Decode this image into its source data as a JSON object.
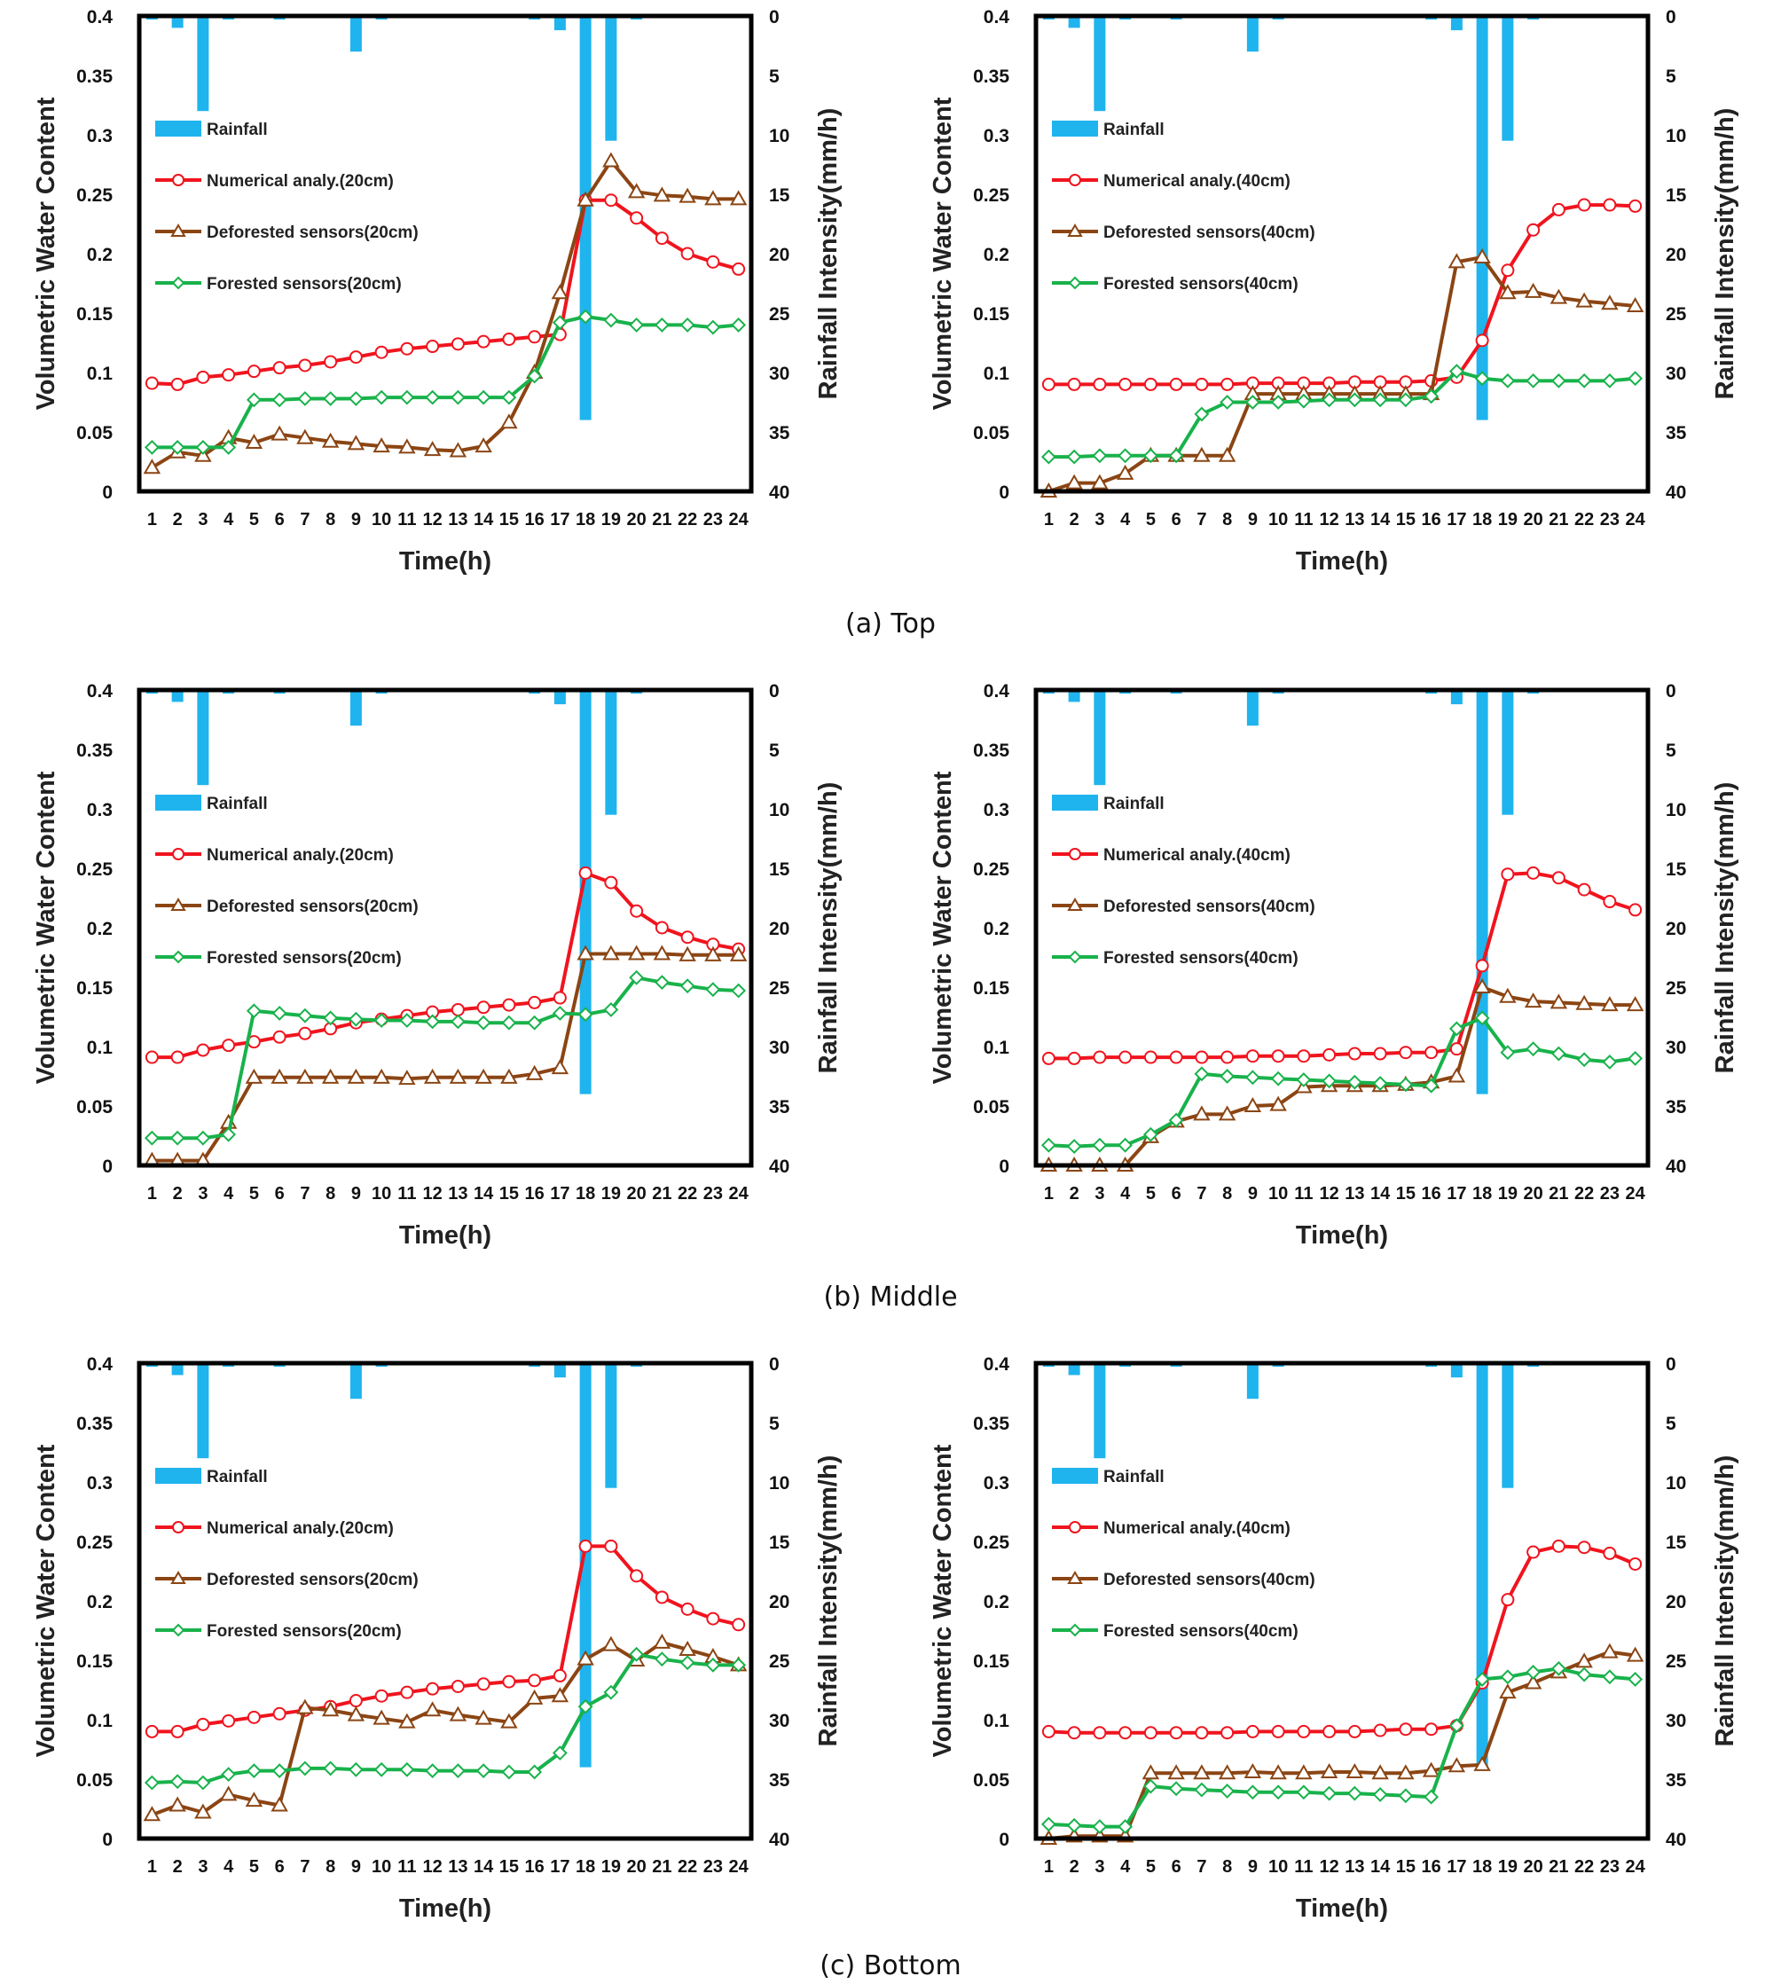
{
  "colors": {
    "rainfall": "#1FB4EE",
    "numerical": "#F0141E",
    "deforested": "#8B4513",
    "forested": "#18B24B",
    "frame": "#000000"
  },
  "captions": [
    "(a)  Top",
    "(b)  Middle",
    "(c)  Bottom"
  ],
  "chart_data": [
    {
      "id": "top-20",
      "row": 0,
      "col": 0,
      "type": "line",
      "xlabel": "Time(h)",
      "ylabel": "Volumetric Water Content",
      "y2label": "Rainfall Intensity(mm/h)",
      "x": [
        1,
        2,
        3,
        4,
        5,
        6,
        7,
        8,
        9,
        10,
        11,
        12,
        13,
        14,
        15,
        16,
        17,
        18,
        19,
        20,
        21,
        22,
        23,
        24
      ],
      "ylim": [
        0,
        0.4
      ],
      "yticks": [
        "0",
        "0.05",
        "0.1",
        "0.15",
        "0.2",
        "0.25",
        "0.3",
        "0.35",
        "0.4"
      ],
      "y2lim": [
        0,
        40
      ],
      "y2ticks": [
        "0",
        "5",
        "10",
        "15",
        "20",
        "25",
        "30",
        "35",
        "40"
      ],
      "y2_inverted": true,
      "legend_position": "left",
      "rainfall": {
        "name": "Rainfall",
        "values": [
          0.3,
          1,
          8,
          0.3,
          0,
          0.3,
          0,
          0,
          3,
          0.3,
          0,
          0,
          0,
          0,
          0,
          0.3,
          1.2,
          34,
          10.5,
          0.3,
          0,
          0,
          0,
          0
        ]
      },
      "series": [
        {
          "name": "Numerical analy.(20cm)",
          "key": "numerical",
          "values": [
            0.091,
            0.09,
            0.096,
            0.098,
            0.101,
            0.104,
            0.106,
            0.109,
            0.113,
            0.117,
            0.12,
            0.122,
            0.124,
            0.126,
            0.128,
            0.13,
            0.132,
            0.245,
            0.245,
            0.23,
            0.213,
            0.2,
            0.193,
            0.187
          ]
        },
        {
          "name": "Deforested sensors(20cm)",
          "key": "deforested",
          "values": [
            0.02,
            0.033,
            0.03,
            0.045,
            0.041,
            0.048,
            0.045,
            0.042,
            0.04,
            0.038,
            0.037,
            0.035,
            0.034,
            0.038,
            0.058,
            0.1,
            0.167,
            0.245,
            0.278,
            0.252,
            0.249,
            0.248,
            0.246,
            0.246
          ]
        },
        {
          "name": "Forested sensors(20cm)",
          "key": "forested",
          "values": [
            0.037,
            0.037,
            0.037,
            0.037,
            0.077,
            0.077,
            0.078,
            0.078,
            0.078,
            0.079,
            0.079,
            0.079,
            0.079,
            0.079,
            0.079,
            0.097,
            0.142,
            0.147,
            0.144,
            0.14,
            0.14,
            0.14,
            0.138,
            0.14
          ]
        }
      ]
    },
    {
      "id": "top-40",
      "row": 0,
      "col": 1,
      "type": "line",
      "xlabel": "Time(h)",
      "ylabel": "Volumetric Water Content",
      "y2label": "Rainfall Intensity(mm/h)",
      "x": [
        1,
        2,
        3,
        4,
        5,
        6,
        7,
        8,
        9,
        10,
        11,
        12,
        13,
        14,
        15,
        16,
        17,
        18,
        19,
        20,
        21,
        22,
        23,
        24
      ],
      "ylim": [
        0,
        0.4
      ],
      "yticks": [
        "0",
        "0.05",
        "0.1",
        "0.15",
        "0.2",
        "0.25",
        "0.3",
        "0.35",
        "0.4"
      ],
      "y2lim": [
        0,
        40
      ],
      "y2ticks": [
        "0",
        "5",
        "10",
        "15",
        "20",
        "25",
        "30",
        "35",
        "40"
      ],
      "y2_inverted": true,
      "legend_position": "left",
      "rainfall": {
        "name": "Rainfall",
        "values": [
          0.3,
          1,
          8,
          0.3,
          0,
          0.3,
          0,
          0,
          3,
          0.3,
          0,
          0,
          0,
          0,
          0,
          0.3,
          1.2,
          34,
          10.5,
          0.3,
          0,
          0,
          0,
          0
        ]
      },
      "series": [
        {
          "name": "Numerical analy.(40cm)",
          "key": "numerical",
          "values": [
            0.09,
            0.09,
            0.09,
            0.09,
            0.09,
            0.09,
            0.09,
            0.09,
            0.091,
            0.091,
            0.091,
            0.091,
            0.092,
            0.092,
            0.092,
            0.093,
            0.096,
            0.127,
            0.186,
            0.22,
            0.237,
            0.241,
            0.241,
            0.24
          ]
        },
        {
          "name": "Deforested sensors(40cm)",
          "key": "deforested",
          "values": [
            0.0,
            0.007,
            0.007,
            0.015,
            0.03,
            0.03,
            0.03,
            0.03,
            0.082,
            0.082,
            0.082,
            0.082,
            0.082,
            0.082,
            0.082,
            0.082,
            0.193,
            0.197,
            0.167,
            0.168,
            0.163,
            0.16,
            0.158,
            0.156
          ]
        },
        {
          "name": "Forested sensors(40cm)",
          "key": "forested",
          "values": [
            0.029,
            0.029,
            0.03,
            0.03,
            0.03,
            0.03,
            0.065,
            0.075,
            0.075,
            0.075,
            0.076,
            0.077,
            0.077,
            0.077,
            0.077,
            0.08,
            0.101,
            0.095,
            0.093,
            0.093,
            0.093,
            0.093,
            0.093,
            0.095
          ]
        }
      ]
    },
    {
      "id": "middle-20",
      "row": 1,
      "col": 0,
      "type": "line",
      "xlabel": "Time(h)",
      "ylabel": "Volumetric Water Content",
      "y2label": "Rainfall Intensity(mm/h)",
      "x": [
        1,
        2,
        3,
        4,
        5,
        6,
        7,
        8,
        9,
        10,
        11,
        12,
        13,
        14,
        15,
        16,
        17,
        18,
        19,
        20,
        21,
        22,
        23,
        24
      ],
      "ylim": [
        0,
        0.4
      ],
      "yticks": [
        "0",
        "0.05",
        "0.1",
        "0.15",
        "0.2",
        "0.25",
        "0.3",
        "0.35",
        "0.4"
      ],
      "y2lim": [
        0,
        40
      ],
      "y2ticks": [
        "0",
        "5",
        "10",
        "15",
        "20",
        "25",
        "30",
        "35",
        "40"
      ],
      "y2_inverted": true,
      "legend_position": "left",
      "rainfall": {
        "name": "Rainfall",
        "values": [
          0.3,
          1,
          8,
          0.3,
          0,
          0.3,
          0,
          0,
          3,
          0.3,
          0,
          0,
          0,
          0,
          0,
          0.3,
          1.2,
          34,
          10.5,
          0.3,
          0,
          0,
          0,
          0
        ]
      },
      "series": [
        {
          "name": "Numerical analy.(20cm)",
          "key": "numerical",
          "values": [
            0.091,
            0.091,
            0.097,
            0.101,
            0.104,
            0.108,
            0.111,
            0.115,
            0.12,
            0.123,
            0.126,
            0.129,
            0.131,
            0.133,
            0.135,
            0.137,
            0.141,
            0.246,
            0.238,
            0.214,
            0.2,
            0.192,
            0.186,
            0.182
          ]
        },
        {
          "name": "Deforested sensors(20cm)",
          "key": "deforested",
          "values": [
            0.004,
            0.004,
            0.004,
            0.036,
            0.074,
            0.074,
            0.074,
            0.074,
            0.074,
            0.074,
            0.073,
            0.074,
            0.074,
            0.074,
            0.074,
            0.077,
            0.082,
            0.178,
            0.178,
            0.178,
            0.178,
            0.177,
            0.177,
            0.177
          ]
        },
        {
          "name": "Forested sensors(20cm)",
          "key": "forested",
          "values": [
            0.023,
            0.023,
            0.023,
            0.026,
            0.13,
            0.128,
            0.126,
            0.124,
            0.123,
            0.122,
            0.122,
            0.121,
            0.121,
            0.12,
            0.12,
            0.12,
            0.128,
            0.127,
            0.131,
            0.158,
            0.154,
            0.151,
            0.148,
            0.147
          ]
        }
      ]
    },
    {
      "id": "middle-40",
      "row": 1,
      "col": 1,
      "type": "line",
      "xlabel": "Time(h)",
      "ylabel": "Volumetric Water Content",
      "y2label": "Rainfall Intensity(mm/h)",
      "x": [
        1,
        2,
        3,
        4,
        5,
        6,
        7,
        8,
        9,
        10,
        11,
        12,
        13,
        14,
        15,
        16,
        17,
        18,
        19,
        20,
        21,
        22,
        23,
        24
      ],
      "ylim": [
        0,
        0.4
      ],
      "yticks": [
        "0",
        "0.05",
        "0.1",
        "0.15",
        "0.2",
        "0.25",
        "0.3",
        "0.35",
        "0.4"
      ],
      "y2lim": [
        0,
        40
      ],
      "y2ticks": [
        "0",
        "5",
        "10",
        "15",
        "20",
        "25",
        "30",
        "35",
        "40"
      ],
      "y2_inverted": true,
      "legend_position": "left",
      "rainfall": {
        "name": "Rainfall",
        "values": [
          0.3,
          1,
          8,
          0.3,
          0,
          0.3,
          0,
          0,
          3,
          0.3,
          0,
          0,
          0,
          0,
          0,
          0.3,
          1.2,
          34,
          10.5,
          0.3,
          0,
          0,
          0,
          0
        ]
      },
      "series": [
        {
          "name": "Numerical analy.(40cm)",
          "key": "numerical",
          "values": [
            0.09,
            0.09,
            0.091,
            0.091,
            0.091,
            0.091,
            0.091,
            0.091,
            0.092,
            0.092,
            0.092,
            0.093,
            0.094,
            0.094,
            0.095,
            0.095,
            0.098,
            0.168,
            0.245,
            0.246,
            0.242,
            0.232,
            0.222,
            0.215
          ]
        },
        {
          "name": "Deforested sensors(40cm)",
          "key": "deforested",
          "values": [
            0.0,
            0.0,
            0.0,
            0.0,
            0.024,
            0.037,
            0.043,
            0.043,
            0.05,
            0.051,
            0.066,
            0.067,
            0.067,
            0.067,
            0.068,
            0.07,
            0.075,
            0.15,
            0.142,
            0.138,
            0.137,
            0.136,
            0.135,
            0.135
          ]
        },
        {
          "name": "Forested sensors(40cm)",
          "key": "forested",
          "values": [
            0.017,
            0.016,
            0.017,
            0.017,
            0.026,
            0.038,
            0.077,
            0.075,
            0.074,
            0.073,
            0.072,
            0.071,
            0.07,
            0.069,
            0.068,
            0.067,
            0.115,
            0.124,
            0.095,
            0.098,
            0.094,
            0.089,
            0.087,
            0.09
          ]
        }
      ]
    },
    {
      "id": "bottom-20",
      "row": 2,
      "col": 0,
      "type": "line",
      "xlabel": "Time(h)",
      "ylabel": "Volumetric Water Content",
      "y2label": "Rainfall Intensity(mm/h)",
      "x": [
        1,
        2,
        3,
        4,
        5,
        6,
        7,
        8,
        9,
        10,
        11,
        12,
        13,
        14,
        15,
        16,
        17,
        18,
        19,
        20,
        21,
        22,
        23,
        24
      ],
      "ylim": [
        0,
        0.4
      ],
      "yticks": [
        "0",
        "0.05",
        "0.1",
        "0.15",
        "0.2",
        "0.25",
        "0.3",
        "0.35",
        "0.4"
      ],
      "y2lim": [
        0,
        40
      ],
      "y2ticks": [
        "0",
        "5",
        "10",
        "15",
        "20",
        "25",
        "30",
        "35",
        "40"
      ],
      "y2_inverted": true,
      "legend_position": "left",
      "rainfall": {
        "name": "Rainfall",
        "values": [
          0.3,
          1,
          8,
          0.3,
          0,
          0.3,
          0,
          0,
          3,
          0.3,
          0,
          0,
          0,
          0,
          0,
          0.3,
          1.2,
          34,
          10.5,
          0.3,
          0,
          0,
          0,
          0
        ]
      },
      "series": [
        {
          "name": "Numerical analy.(20cm)",
          "key": "numerical",
          "values": [
            0.09,
            0.09,
            0.096,
            0.099,
            0.102,
            0.105,
            0.108,
            0.111,
            0.116,
            0.12,
            0.123,
            0.126,
            0.128,
            0.13,
            0.132,
            0.133,
            0.137,
            0.246,
            0.246,
            0.221,
            0.203,
            0.193,
            0.185,
            0.18
          ]
        },
        {
          "name": "Deforested sensors(20cm)",
          "key": "deforested",
          "values": [
            0.02,
            0.028,
            0.022,
            0.037,
            0.032,
            0.028,
            0.11,
            0.108,
            0.104,
            0.101,
            0.098,
            0.108,
            0.104,
            0.101,
            0.098,
            0.118,
            0.12,
            0.151,
            0.163,
            0.15,
            0.165,
            0.159,
            0.153,
            0.146
          ]
        },
        {
          "name": "Forested sensors(20cm)",
          "key": "forested",
          "values": [
            0.047,
            0.048,
            0.047,
            0.054,
            0.057,
            0.057,
            0.059,
            0.059,
            0.058,
            0.058,
            0.058,
            0.057,
            0.057,
            0.057,
            0.056,
            0.056,
            0.072,
            0.111,
            0.123,
            0.155,
            0.151,
            0.148,
            0.146,
            0.146
          ]
        }
      ]
    },
    {
      "id": "bottom-40",
      "row": 2,
      "col": 1,
      "type": "line",
      "xlabel": "Time(h)",
      "ylabel": "Volumetric Water Content",
      "y2label": "Rainfall Intensity(mm/h)",
      "x": [
        1,
        2,
        3,
        4,
        5,
        6,
        7,
        8,
        9,
        10,
        11,
        12,
        13,
        14,
        15,
        16,
        17,
        18,
        19,
        20,
        21,
        22,
        23,
        24
      ],
      "ylim": [
        0,
        0.4
      ],
      "yticks": [
        "0",
        "0.05",
        "0.1",
        "0.15",
        "0.2",
        "0.25",
        "0.3",
        "0.35",
        "0.4"
      ],
      "y2lim": [
        0,
        40
      ],
      "y2ticks": [
        "0",
        "5",
        "10",
        "15",
        "20",
        "25",
        "30",
        "35",
        "40"
      ],
      "y2_inverted": true,
      "legend_position": "left",
      "rainfall": {
        "name": "Rainfall",
        "values": [
          0.3,
          1,
          8,
          0.3,
          0,
          0.3,
          0,
          0,
          3,
          0.3,
          0,
          0,
          0,
          0,
          0,
          0.3,
          1.2,
          34,
          10.5,
          0.3,
          0,
          0,
          0,
          0
        ]
      },
      "series": [
        {
          "name": "Numerical analy.(40cm)",
          "key": "numerical",
          "values": [
            0.09,
            0.089,
            0.089,
            0.089,
            0.089,
            0.089,
            0.089,
            0.089,
            0.09,
            0.09,
            0.09,
            0.09,
            0.09,
            0.091,
            0.092,
            0.092,
            0.095,
            0.131,
            0.201,
            0.241,
            0.246,
            0.245,
            0.24,
            0.231
          ]
        },
        {
          "name": "Deforested sensors(40cm)",
          "key": "deforested",
          "values": [
            0.0,
            0.002,
            0.002,
            0.002,
            0.055,
            0.055,
            0.055,
            0.055,
            0.056,
            0.055,
            0.055,
            0.056,
            0.056,
            0.055,
            0.055,
            0.057,
            0.061,
            0.062,
            0.123,
            0.131,
            0.14,
            0.149,
            0.157,
            0.154
          ]
        },
        {
          "name": "Forested sensors(40cm)",
          "key": "forested",
          "values": [
            0.012,
            0.011,
            0.01,
            0.01,
            0.044,
            0.042,
            0.041,
            0.04,
            0.039,
            0.039,
            0.039,
            0.038,
            0.038,
            0.037,
            0.036,
            0.035,
            0.095,
            0.134,
            0.136,
            0.14,
            0.143,
            0.138,
            0.136,
            0.134
          ]
        }
      ]
    }
  ]
}
